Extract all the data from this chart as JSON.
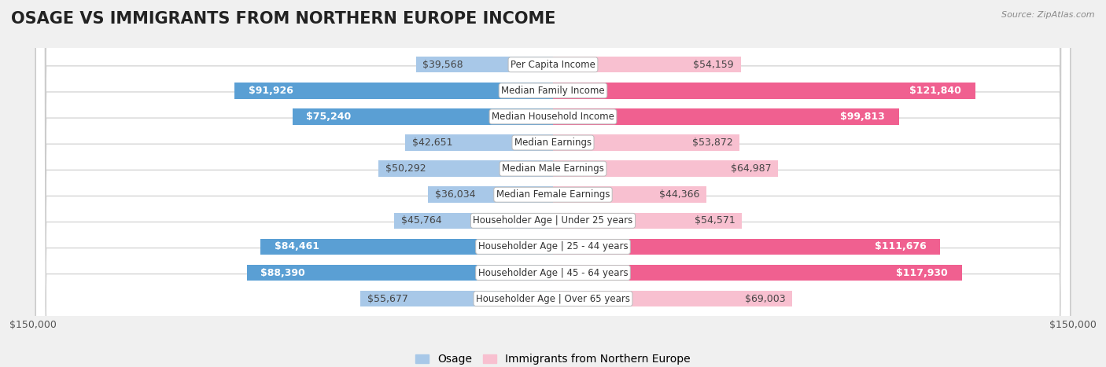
{
  "title": "OSAGE VS IMMIGRANTS FROM NORTHERN EUROPE INCOME",
  "source": "Source: ZipAtlas.com",
  "categories": [
    "Per Capita Income",
    "Median Family Income",
    "Median Household Income",
    "Median Earnings",
    "Median Male Earnings",
    "Median Female Earnings",
    "Householder Age | Under 25 years",
    "Householder Age | 25 - 44 years",
    "Householder Age | 45 - 64 years",
    "Householder Age | Over 65 years"
  ],
  "osage_values": [
    39568,
    91926,
    75240,
    42651,
    50292,
    36034,
    45764,
    84461,
    88390,
    55677
  ],
  "immigrant_values": [
    54159,
    121840,
    99813,
    53872,
    64987,
    44366,
    54571,
    111676,
    117930,
    69003
  ],
  "osage_labels": [
    "$39,568",
    "$91,926",
    "$75,240",
    "$42,651",
    "$50,292",
    "$36,034",
    "$45,764",
    "$84,461",
    "$88,390",
    "$55,677"
  ],
  "immigrant_labels": [
    "$54,159",
    "$121,840",
    "$99,813",
    "$53,872",
    "$64,987",
    "$44,366",
    "$54,571",
    "$111,676",
    "$117,930",
    "$69,003"
  ],
  "osage_color_light": "#a8c8e8",
  "osage_color_bold": "#5a9fd4",
  "immigrant_color_light": "#f8c0d0",
  "immigrant_color_bold": "#f06090",
  "max_value": 150000,
  "bg_color": "#f0f0f0",
  "row_bg": "#ffffff",
  "title_fontsize": 15,
  "label_fontsize": 9,
  "axis_label_fontsize": 9,
  "legend_fontsize": 10,
  "osage_threshold": 60000,
  "immigrant_threshold": 80000
}
